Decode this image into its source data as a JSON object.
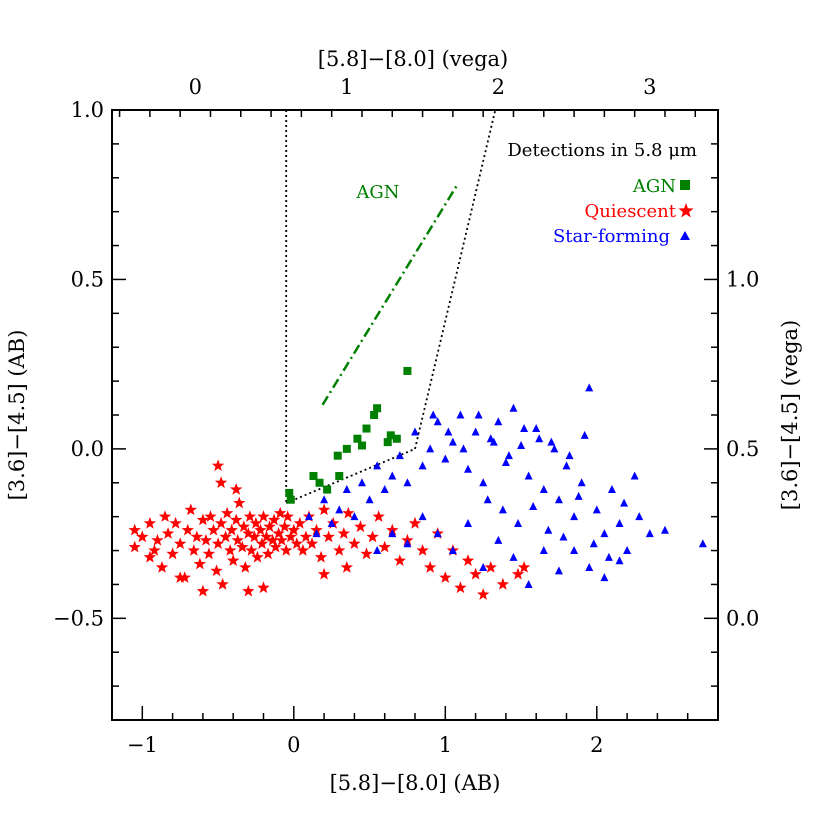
{
  "chart_data": {
    "type": "scatter",
    "title": "Detections in 5.8 μm",
    "xlabel": "[5.8]−[8.0] (AB)",
    "ylabel": "[3.6]−[4.5] (AB)",
    "xlabel_top": "[5.8]−[8.0] (vega)",
    "ylabel_right": "[3.6]−[4.5] (vega)",
    "xlim": [
      -1.2,
      2.8
    ],
    "ylim": [
      -0.8,
      1.0
    ],
    "x_ticks": [
      "−1",
      "0",
      "1",
      "2"
    ],
    "y_ticks": [
      "−0.5",
      "0.0",
      "0.5",
      "1.0"
    ],
    "x_top_ticks": [
      "0",
      "1",
      "2",
      "3"
    ],
    "y_right_ticks": [
      "0.0",
      "0.5",
      "1.0"
    ],
    "region_label": "AGN",
    "legend_position": "top-right",
    "colors": {
      "agn": "#008000",
      "quiescent": "#ff0000",
      "starforming": "#0000ff",
      "axis": "#000000"
    },
    "series": [
      {
        "name": "AGN",
        "marker": "square",
        "points": [
          [
            -0.03,
            -0.13
          ],
          [
            -0.02,
            -0.15
          ],
          [
            0.13,
            -0.08
          ],
          [
            0.17,
            -0.1
          ],
          [
            0.22,
            -0.12
          ],
          [
            0.3,
            -0.08
          ],
          [
            0.29,
            -0.02
          ],
          [
            0.35,
            -0.0
          ],
          [
            0.42,
            0.03
          ],
          [
            0.45,
            0.01
          ],
          [
            0.48,
            0.06
          ],
          [
            0.53,
            0.1
          ],
          [
            0.55,
            0.12
          ],
          [
            0.62,
            0.02
          ],
          [
            0.64,
            0.04
          ],
          [
            0.68,
            0.03
          ],
          [
            0.75,
            0.23
          ]
        ]
      },
      {
        "name": "Quiescent",
        "marker": "star",
        "points": [
          [
            -1.05,
            -0.24
          ],
          [
            -1.0,
            -0.26
          ],
          [
            -0.95,
            -0.22
          ],
          [
            -0.92,
            -0.3
          ],
          [
            -0.9,
            -0.27
          ],
          [
            -0.87,
            -0.35
          ],
          [
            -0.85,
            -0.2
          ],
          [
            -0.83,
            -0.25
          ],
          [
            -0.8,
            -0.31
          ],
          [
            -0.78,
            -0.22
          ],
          [
            -0.75,
            -0.28
          ],
          [
            -0.72,
            -0.38
          ],
          [
            -0.7,
            -0.24
          ],
          [
            -0.68,
            -0.18
          ],
          [
            -0.66,
            -0.3
          ],
          [
            -0.64,
            -0.26
          ],
          [
            -0.62,
            -0.34
          ],
          [
            -0.6,
            -0.21
          ],
          [
            -0.58,
            -0.27
          ],
          [
            -0.56,
            -0.31
          ],
          [
            -0.55,
            -0.2
          ],
          [
            -0.53,
            -0.24
          ],
          [
            -0.51,
            -0.36
          ],
          [
            -0.5,
            -0.28
          ],
          [
            -0.48,
            -0.22
          ],
          [
            -0.47,
            -0.4
          ],
          [
            -0.45,
            -0.26
          ],
          [
            -0.44,
            -0.19
          ],
          [
            -0.42,
            -0.3
          ],
          [
            -0.41,
            -0.24
          ],
          [
            -0.4,
            -0.33
          ],
          [
            -0.38,
            -0.21
          ],
          [
            -0.37,
            -0.27
          ],
          [
            -0.36,
            -0.16
          ],
          [
            -0.34,
            -0.29
          ],
          [
            -0.33,
            -0.23
          ],
          [
            -0.32,
            -0.35
          ],
          [
            -0.3,
            -0.25
          ],
          [
            -0.29,
            -0.2
          ],
          [
            -0.28,
            -0.3
          ],
          [
            -0.26,
            -0.26
          ],
          [
            -0.25,
            -0.22
          ],
          [
            -0.24,
            -0.32
          ],
          [
            -0.22,
            -0.24
          ],
          [
            -0.21,
            -0.28
          ],
          [
            -0.2,
            -0.2
          ],
          [
            -0.18,
            -0.26
          ],
          [
            -0.17,
            -0.31
          ],
          [
            -0.16,
            -0.23
          ],
          [
            -0.14,
            -0.27
          ],
          [
            -0.13,
            -0.21
          ],
          [
            -0.12,
            -0.29
          ],
          [
            -0.1,
            -0.25
          ],
          [
            -0.09,
            -0.19
          ],
          [
            -0.08,
            -0.27
          ],
          [
            -0.06,
            -0.23
          ],
          [
            -0.05,
            -0.3
          ],
          [
            -0.04,
            -0.2
          ],
          [
            -0.02,
            -0.26
          ],
          [
            0.0,
            -0.24
          ],
          [
            0.02,
            -0.28
          ],
          [
            0.04,
            -0.22
          ],
          [
            0.06,
            -0.3
          ],
          [
            0.08,
            -0.26
          ],
          [
            0.1,
            -0.2
          ],
          [
            0.12,
            -0.28
          ],
          [
            0.15,
            -0.24
          ],
          [
            0.18,
            -0.32
          ],
          [
            0.2,
            -0.18
          ],
          [
            0.23,
            -0.26
          ],
          [
            0.26,
            -0.22
          ],
          [
            0.3,
            -0.3
          ],
          [
            0.33,
            -0.25
          ],
          [
            0.36,
            -0.19
          ],
          [
            0.4,
            -0.28
          ],
          [
            0.44,
            -0.23
          ],
          [
            0.48,
            -0.31
          ],
          [
            0.52,
            -0.26
          ],
          [
            0.56,
            -0.2
          ],
          [
            0.6,
            -0.29
          ],
          [
            0.65,
            -0.24
          ],
          [
            0.7,
            -0.33
          ],
          [
            0.75,
            -0.27
          ],
          [
            0.8,
            -0.22
          ],
          [
            0.85,
            -0.3
          ],
          [
            0.9,
            -0.35
          ],
          [
            0.95,
            -0.25
          ],
          [
            1.0,
            -0.38
          ],
          [
            1.05,
            -0.3
          ],
          [
            1.1,
            -0.41
          ],
          [
            1.15,
            -0.33
          ],
          [
            1.2,
            -0.37
          ],
          [
            1.25,
            -0.43
          ],
          [
            1.3,
            -0.35
          ],
          [
            1.38,
            -0.4
          ],
          [
            1.48,
            -0.37
          ],
          [
            1.52,
            -0.35
          ],
          [
            -0.5,
            -0.05
          ],
          [
            -0.48,
            -0.1
          ],
          [
            -0.38,
            -0.12
          ],
          [
            -0.6,
            -0.42
          ],
          [
            -0.3,
            -0.42
          ],
          [
            -0.75,
            -0.38
          ],
          [
            -0.2,
            -0.41
          ],
          [
            0.2,
            -0.37
          ],
          [
            0.35,
            -0.35
          ],
          [
            -0.95,
            -0.32
          ],
          [
            -1.05,
            -0.29
          ]
        ]
      },
      {
        "name": "Star-forming",
        "marker": "triangle",
        "points": [
          [
            0.1,
            -0.2
          ],
          [
            0.15,
            -0.25
          ],
          [
            0.2,
            -0.15
          ],
          [
            0.25,
            -0.22
          ],
          [
            0.3,
            -0.18
          ],
          [
            0.35,
            -0.12
          ],
          [
            0.4,
            -0.2
          ],
          [
            0.45,
            -0.1
          ],
          [
            0.5,
            -0.15
          ],
          [
            0.55,
            -0.05
          ],
          [
            0.6,
            -0.12
          ],
          [
            0.65,
            -0.08
          ],
          [
            0.7,
            -0.02
          ],
          [
            0.75,
            -0.1
          ],
          [
            0.8,
            0.05
          ],
          [
            0.85,
            -0.05
          ],
          [
            0.9,
            0.0
          ],
          [
            0.95,
            0.08
          ],
          [
            1.0,
            -0.03
          ],
          [
            1.05,
            0.02
          ],
          [
            1.1,
            0.1
          ],
          [
            1.15,
            -0.06
          ],
          [
            1.2,
            0.05
          ],
          [
            1.25,
            -0.1
          ],
          [
            1.3,
            0.03
          ],
          [
            1.35,
            0.08
          ],
          [
            1.4,
            -0.04
          ],
          [
            1.45,
            0.12
          ],
          [
            1.5,
            0.01
          ],
          [
            1.55,
            -0.08
          ],
          [
            1.6,
            0.06
          ],
          [
            1.65,
            -0.12
          ],
          [
            1.7,
            0.02
          ],
          [
            1.75,
            -0.15
          ],
          [
            1.8,
            -0.05
          ],
          [
            1.85,
            -0.2
          ],
          [
            1.9,
            -0.1
          ],
          [
            1.95,
            0.18
          ],
          [
            2.0,
            -0.18
          ],
          [
            2.05,
            -0.25
          ],
          [
            2.1,
            -0.12
          ],
          [
            2.15,
            -0.22
          ],
          [
            2.2,
            -0.3
          ],
          [
            2.25,
            -0.08
          ],
          [
            2.35,
            -0.25
          ],
          [
            2.7,
            -0.28
          ],
          [
            0.55,
            -0.3
          ],
          [
            0.65,
            -0.25
          ],
          [
            0.75,
            -0.28
          ],
          [
            0.85,
            -0.2
          ],
          [
            0.95,
            -0.25
          ],
          [
            1.05,
            -0.3
          ],
          [
            1.15,
            -0.22
          ],
          [
            1.25,
            -0.35
          ],
          [
            1.35,
            -0.27
          ],
          [
            1.45,
            -0.32
          ],
          [
            1.55,
            -0.4
          ],
          [
            1.65,
            -0.3
          ],
          [
            1.75,
            -0.36
          ],
          [
            1.85,
            -0.3
          ],
          [
            1.95,
            -0.35
          ],
          [
            2.05,
            -0.38
          ],
          [
            2.15,
            -0.33
          ],
          [
            0.92,
            0.1
          ],
          [
            1.02,
            0.05
          ],
          [
            1.12,
            0.0
          ],
          [
            1.22,
            0.1
          ],
          [
            1.32,
            0.02
          ],
          [
            1.42,
            -0.02
          ],
          [
            1.52,
            0.06
          ],
          [
            1.62,
            0.03
          ],
          [
            1.72,
            0.0
          ],
          [
            1.82,
            -0.02
          ],
          [
            1.92,
            0.04
          ],
          [
            1.28,
            -0.15
          ],
          [
            1.38,
            -0.18
          ],
          [
            1.48,
            -0.22
          ],
          [
            1.58,
            -0.17
          ],
          [
            1.68,
            -0.24
          ],
          [
            1.78,
            -0.26
          ],
          [
            1.88,
            -0.14
          ],
          [
            1.98,
            -0.28
          ],
          [
            2.08,
            -0.32
          ],
          [
            2.18,
            -0.16
          ],
          [
            2.28,
            -0.2
          ],
          [
            2.45,
            -0.24
          ]
        ]
      }
    ],
    "lines": {
      "agn_wedge_vertical": [
        [
          -0.05,
          1.0
        ],
        [
          -0.05,
          -0.16
        ]
      ],
      "agn_wedge_bottom": [
        [
          -0.05,
          -0.16
        ],
        [
          0.8,
          0.0
        ]
      ],
      "agn_wedge_right": [
        [
          0.8,
          0.0
        ],
        [
          1.33,
          1.0
        ]
      ],
      "agn_arrow": [
        [
          0.19,
          0.13
        ],
        [
          1.08,
          0.78
        ]
      ]
    }
  }
}
